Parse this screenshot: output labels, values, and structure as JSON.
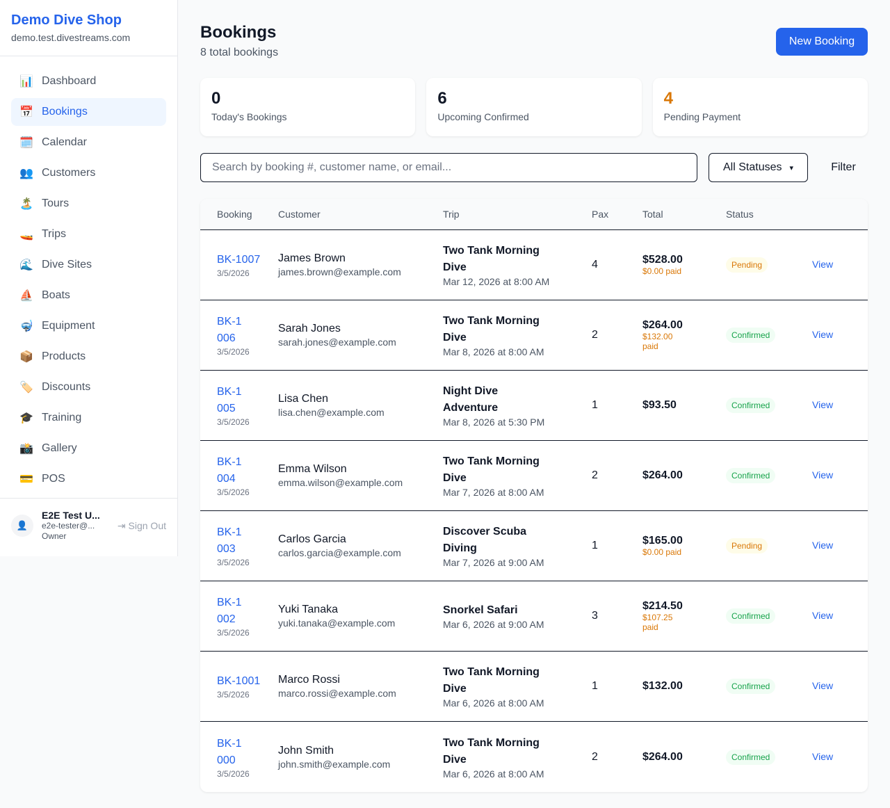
{
  "sidebar": {
    "brand": "Demo Dive Shop",
    "domain": "demo.test.divestreams.com",
    "items": [
      {
        "icon": "📊",
        "label": "Dashboard"
      },
      {
        "icon": "📅",
        "label": "Bookings",
        "active": true
      },
      {
        "icon": "🗓️",
        "label": "Calendar"
      },
      {
        "icon": "👥",
        "label": "Customers"
      },
      {
        "icon": "🏝️",
        "label": "Tours"
      },
      {
        "icon": "🚤",
        "label": "Trips"
      },
      {
        "icon": "🌊",
        "label": "Dive Sites"
      },
      {
        "icon": "⛵",
        "label": "Boats"
      },
      {
        "icon": "🤿",
        "label": "Equipment"
      },
      {
        "icon": "📦",
        "label": "Products"
      },
      {
        "icon": "🏷️",
        "label": "Discounts"
      },
      {
        "icon": "🎓",
        "label": "Training"
      },
      {
        "icon": "📸",
        "label": "Gallery"
      },
      {
        "icon": "💳",
        "label": "POS"
      }
    ],
    "user": {
      "name": "E2E Test U...",
      "email": "e2e-tester@...",
      "role": "Owner",
      "sign_out": "Sign Out"
    }
  },
  "header": {
    "title": "Bookings",
    "subtitle": "8 total bookings",
    "new_button": "New Booking"
  },
  "stats": [
    {
      "value": "0",
      "label": "Today's Bookings",
      "color": "#111827"
    },
    {
      "value": "6",
      "label": "Upcoming Confirmed",
      "color": "#111827"
    },
    {
      "value": "4",
      "label": "Pending Payment",
      "color": "#d97706"
    }
  ],
  "filters": {
    "search_placeholder": "Search by booking #, customer name, or email...",
    "status": "All Statuses",
    "filter_button": "Filter"
  },
  "table": {
    "headers": [
      "Booking",
      "Customer",
      "Trip",
      "Pax",
      "Total",
      "Status",
      ""
    ],
    "rows": [
      {
        "id": "BK-1007",
        "date": "3/5/2026",
        "name": "James Brown",
        "email": "james.brown@example.com",
        "trip": "Two Tank Morning Dive",
        "when": "Mar 12, 2026 at 8:00 AM",
        "pax": "4",
        "total": "$528.00",
        "paid": "$0.00 paid",
        "status": "Pending",
        "action": "View"
      },
      {
        "id": "BK-1006",
        "date": "3/5/2026",
        "name": "Sarah Jones",
        "email": "sarah.jones@example.com",
        "trip": "Two Tank Morning Dive",
        "when": "Mar 8, 2026 at 8:00 AM",
        "pax": "2",
        "total": "$264.00",
        "paid": "$132.00 paid",
        "status": "Confirmed",
        "action": "View"
      },
      {
        "id": "BK-1005",
        "date": "3/5/2026",
        "name": "Lisa Chen",
        "email": "lisa.chen@example.com",
        "trip": "Night Dive Adventure",
        "when": "Mar 8, 2026 at 5:30 PM",
        "pax": "1",
        "total": "$93.50",
        "paid": "",
        "status": "Confirmed",
        "action": "View"
      },
      {
        "id": "BK-1004",
        "date": "3/5/2026",
        "name": "Emma Wilson",
        "email": "emma.wilson@example.com",
        "trip": "Two Tank Morning Dive",
        "when": "Mar 7, 2026 at 8:00 AM",
        "pax": "2",
        "total": "$264.00",
        "paid": "",
        "status": "Confirmed",
        "action": "View"
      },
      {
        "id": "BK-1003",
        "date": "3/5/2026",
        "name": "Carlos Garcia",
        "email": "carlos.garcia@example.com",
        "trip": "Discover Scuba Diving",
        "when": "Mar 7, 2026 at 9:00 AM",
        "pax": "1",
        "total": "$165.00",
        "paid": "$0.00 paid",
        "status": "Pending",
        "action": "View"
      },
      {
        "id": "BK-1002",
        "date": "3/5/2026",
        "name": "Yuki Tanaka",
        "email": "yuki.tanaka@example.com",
        "trip": "Snorkel Safari",
        "when": "Mar 6, 2026 at 9:00 AM",
        "pax": "3",
        "total": "$214.50",
        "paid": "$107.25 paid",
        "status": "Confirmed",
        "action": "View"
      },
      {
        "id": "BK-1001",
        "date": "3/5/2026",
        "name": "Marco Rossi",
        "email": "marco.rossi@example.com",
        "trip": "Two Tank Morning Dive",
        "when": "Mar 6, 2026 at 8:00 AM",
        "pax": "1",
        "total": "$132.00",
        "paid": "",
        "status": "Confirmed",
        "action": "View"
      },
      {
        "id": "BK-1000",
        "date": "3/5/2026",
        "name": "John Smith",
        "email": "john.smith@example.com",
        "trip": "Two Tank Morning Dive",
        "when": "Mar 6, 2026 at 8:00 AM",
        "pax": "2",
        "total": "$264.00",
        "paid": "",
        "status": "Confirmed",
        "action": "View"
      }
    ]
  }
}
